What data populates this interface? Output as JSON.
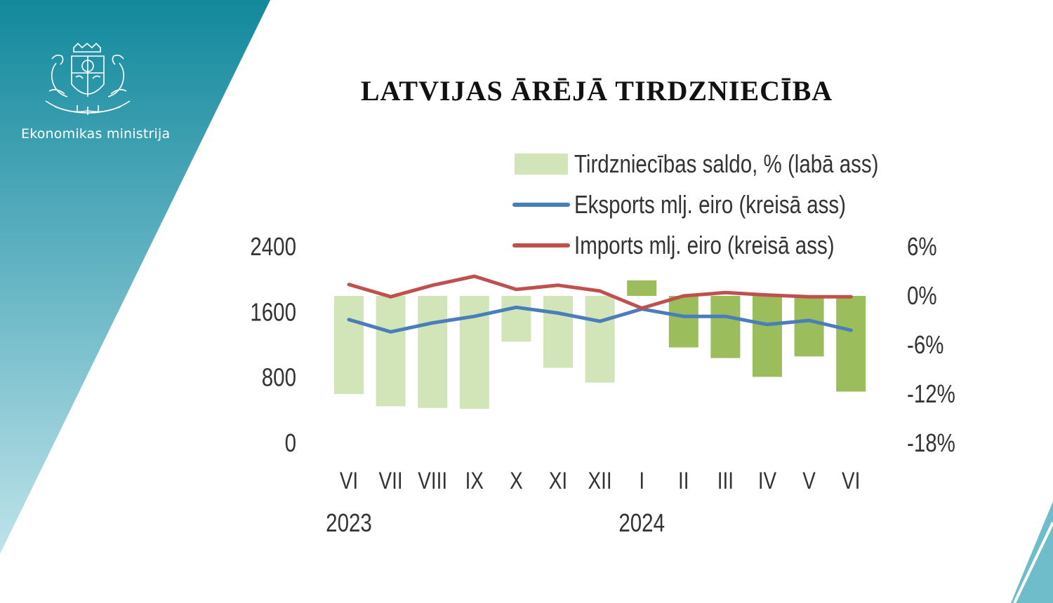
{
  "header": {
    "ministry": "Ekonomikas ministrija",
    "emblem": "latvia-coat-of-arms"
  },
  "colors": {
    "panel_dark": "#12899c",
    "panel_light": "#bfe3ea",
    "bar_2023": "#d2e5b8",
    "bar_2024": "#9bbd5b",
    "exports": "#4a7ebb",
    "imports": "#c0504d"
  },
  "chart_data": {
    "type": "bar+line",
    "title": "LATVIJAS ĀRĒJĀ TIRDZNIECĪBA",
    "categories": [
      "VI",
      "VII",
      "VIII",
      "IX",
      "X",
      "XI",
      "XII",
      "I",
      "II",
      "III",
      "IV",
      "V",
      "VI"
    ],
    "year_labels": [
      {
        "label": "2023",
        "category_index": 0
      },
      {
        "label": "2024",
        "category_index": 7
      }
    ],
    "left_axis": {
      "ticks": [
        "2400",
        "1600",
        "800",
        "0"
      ],
      "ylim": [
        0,
        2400
      ]
    },
    "right_axis": {
      "ticks": [
        "6%",
        "0%",
        "-6%",
        "-12%",
        "-18%"
      ],
      "ylim": [
        -18,
        6
      ],
      "unit": "%"
    },
    "series": [
      {
        "name": "Tirdzniecības saldo, % (labā ass)",
        "type": "bar",
        "axis": "right",
        "values": [
          -12.0,
          -13.5,
          -13.7,
          -13.8,
          -5.6,
          -8.8,
          -10.6,
          1.9,
          -6.3,
          -7.6,
          -9.9,
          -7.4,
          -11.7
        ]
      },
      {
        "name": "Eksports mlj. eiro (kreisā ass)",
        "type": "line",
        "axis": "left",
        "values": [
          1510,
          1360,
          1470,
          1550,
          1660,
          1590,
          1490,
          1640,
          1550,
          1550,
          1450,
          1500,
          1380
        ]
      },
      {
        "name": "Imports mlj. eiro (kreisā ass)",
        "type": "line",
        "axis": "left",
        "values": [
          1940,
          1790,
          1930,
          2040,
          1880,
          1930,
          1860,
          1650,
          1800,
          1840,
          1810,
          1790,
          1790
        ]
      }
    ],
    "legend_position": "top",
    "grid": false
  }
}
